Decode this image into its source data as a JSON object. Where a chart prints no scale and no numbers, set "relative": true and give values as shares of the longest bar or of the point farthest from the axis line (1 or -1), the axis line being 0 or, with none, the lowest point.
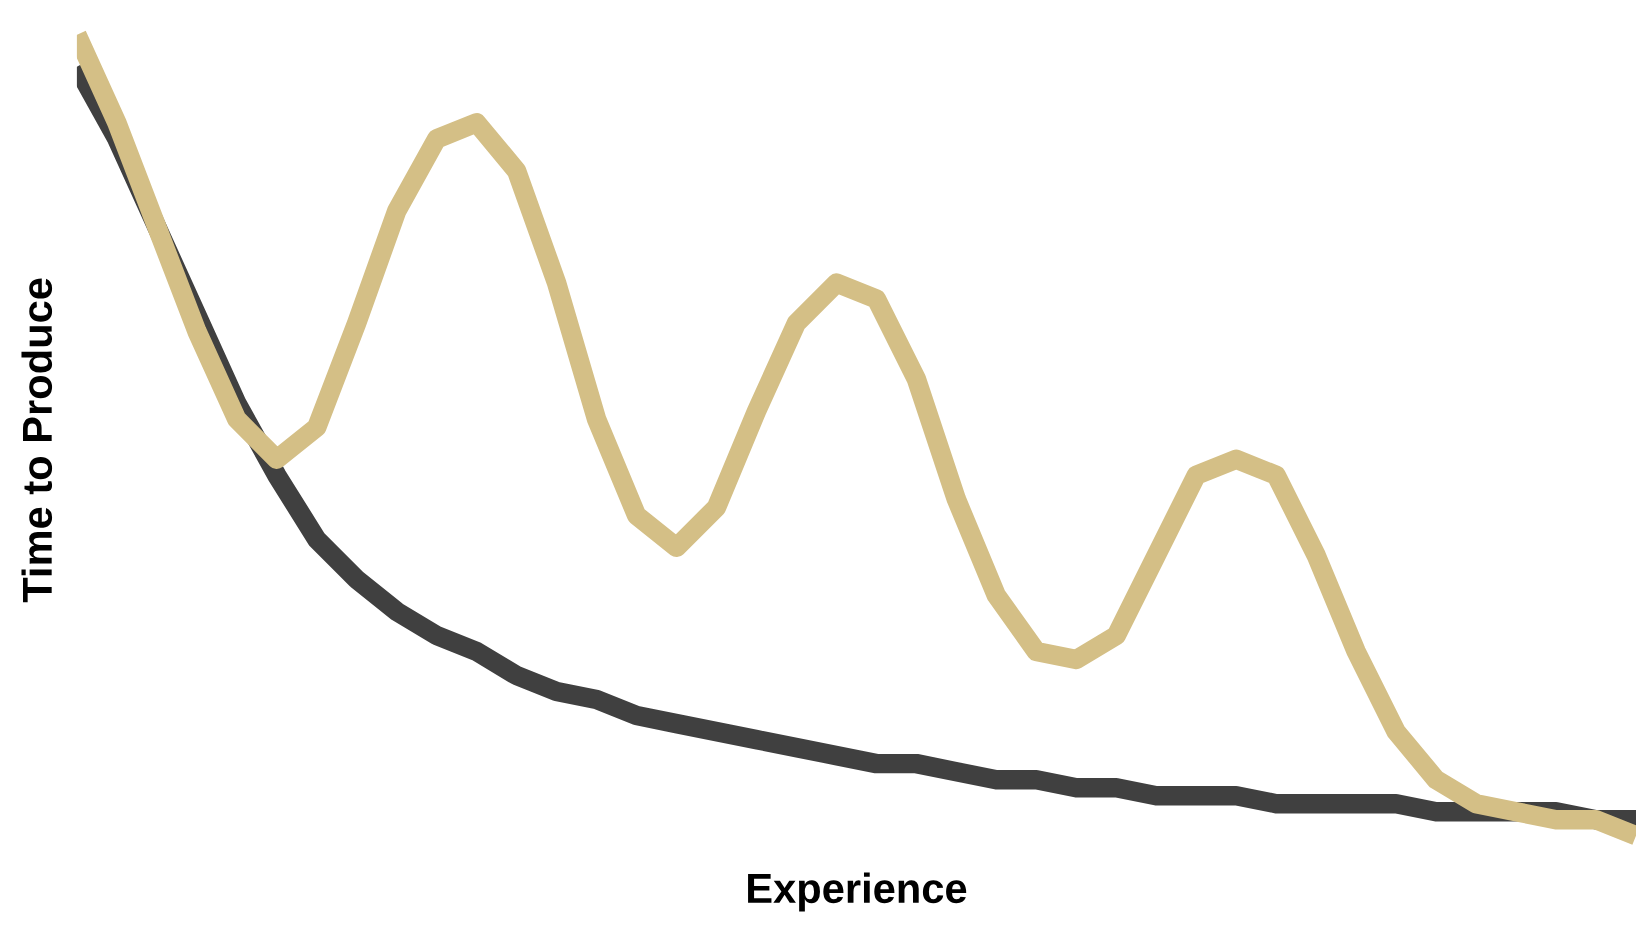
{
  "chart_data": {
    "type": "line",
    "xlabel": "Experience",
    "ylabel": "Time to Produce",
    "relative": true,
    "categories": [
      null,
      null,
      null,
      null,
      null,
      null,
      null,
      null,
      null,
      null,
      null,
      null,
      null,
      null,
      null,
      null,
      null,
      null,
      null,
      null,
      null,
      null,
      null,
      null,
      null,
      null,
      null,
      null,
      null,
      null,
      null,
      null,
      null,
      null,
      null,
      null,
      null,
      null,
      null,
      null
    ],
    "series": [
      {
        "color": "#404040",
        "values": [
          0.96,
          0.87,
          0.76,
          0.65,
          0.54,
          0.45,
          0.37,
          0.32,
          0.28,
          0.25,
          0.23,
          0.2,
          0.18,
          0.17,
          0.15,
          0.14,
          0.13,
          0.12,
          0.11,
          0.1,
          0.09,
          0.09,
          0.08,
          0.07,
          0.07,
          0.06,
          0.06,
          0.05,
          0.05,
          0.05,
          0.04,
          0.04,
          0.04,
          0.04,
          0.03,
          0.03,
          0.03,
          0.03,
          0.02,
          0.02
        ]
      },
      {
        "color": "#d4bf86",
        "values": [
          1.0,
          0.89,
          0.76,
          0.63,
          0.52,
          0.47,
          0.51,
          0.64,
          0.78,
          0.87,
          0.89,
          0.83,
          0.69,
          0.52,
          0.4,
          0.36,
          0.41,
          0.53,
          0.64,
          0.69,
          0.67,
          0.57,
          0.42,
          0.3,
          0.23,
          0.22,
          0.25,
          0.35,
          0.45,
          0.47,
          0.45,
          0.35,
          0.23,
          0.13,
          0.07,
          0.04,
          0.03,
          0.02,
          0.02,
          0.0
        ]
      }
    ]
  }
}
